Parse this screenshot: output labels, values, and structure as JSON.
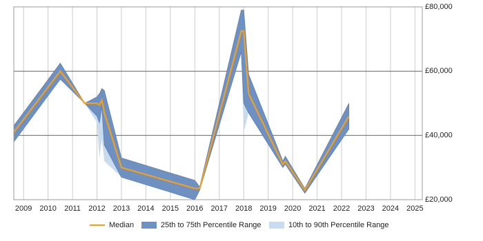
{
  "chart_data": {
    "type": "band-line",
    "x": [
      2008.6,
      2010.5,
      2011.5,
      2012.0,
      2012.1,
      2012.2,
      2012.3,
      2013.0,
      2016.0,
      2016.2,
      2017.9,
      2018.0,
      2018.2,
      2019.6,
      2019.7,
      2020.5,
      2022.3
    ],
    "series": [
      {
        "name": "10th to 90th Percentile Range",
        "color": "#c9dbee",
        "low": [
          38000,
          57500,
          50000,
          44000,
          33000,
          39000,
          32000,
          27000,
          20000,
          23000,
          66000,
          41000,
          47000,
          30000,
          31000,
          22000,
          42000
        ],
        "high": [
          43000,
          62500,
          50000,
          52000,
          53000,
          55000,
          54000,
          33000,
          26000,
          24000,
          79000,
          79000,
          59000,
          32000,
          33500,
          23500,
          50000
        ]
      },
      {
        "name": "25th to 75th Percentile Range",
        "color": "#6f91c2",
        "low": [
          38000,
          57500,
          50000,
          46000,
          44000,
          49000,
          37000,
          27000,
          20000,
          23000,
          66000,
          50000,
          47000,
          30000,
          31000,
          22000,
          42000
        ],
        "high": [
          43000,
          62500,
          50000,
          52000,
          53000,
          54500,
          54000,
          33000,
          26000,
          24000,
          79000,
          79000,
          59000,
          32000,
          33500,
          23500,
          50000
        ]
      },
      {
        "name": "Median",
        "color": "#f0a020",
        "values": [
          41000,
          60000,
          50000,
          50000,
          49500,
          51000,
          47000,
          30000,
          23500,
          23500,
          72500,
          72500,
          53000,
          31000,
          32000,
          23000,
          46000
        ]
      }
    ],
    "xlim": [
      2008.6,
      2025.3
    ],
    "xticks": [
      2009,
      2010,
      2011,
      2012,
      2013,
      2014,
      2015,
      2016,
      2017,
      2018,
      2019,
      2020,
      2021,
      2022,
      2023,
      2024,
      2025
    ],
    "ylim": [
      20000,
      80000
    ],
    "yticks": [
      {
        "value": 20000,
        "label": "£20,000"
      },
      {
        "value": 40000,
        "label": "£40,000"
      },
      {
        "value": 60000,
        "label": "£60,000"
      },
      {
        "value": 80000,
        "label": "£80,000"
      }
    ],
    "grid": true,
    "legend": "bottom"
  }
}
